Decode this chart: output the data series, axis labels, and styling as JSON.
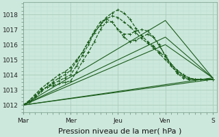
{
  "bg_color": "#cce8dc",
  "grid_major_color": "#aaccbb",
  "grid_minor_color": "#bbddd0",
  "line_color": "#1a5c1a",
  "xlabel": "Pression niveau de la mer( hPa )",
  "xlabel_fontsize": 8,
  "ylim": [
    1011.5,
    1018.8
  ],
  "yticks": [
    1012,
    1013,
    1014,
    1015,
    1016,
    1017,
    1018
  ],
  "xtick_labels": [
    "Mar",
    "Mer",
    "Jeu",
    "Ven",
    "S"
  ],
  "xtick_positions": [
    0,
    48,
    96,
    144,
    192
  ],
  "total_hours": 196,
  "series": [
    {
      "x": [
        0,
        192
      ],
      "y": [
        1012.0,
        1013.7
      ],
      "style": "solid",
      "marker": null,
      "linewidth": 0.8
    },
    {
      "x": [
        0,
        192
      ],
      "y": [
        1012.0,
        1013.8
      ],
      "style": "solid",
      "marker": null,
      "linewidth": 0.8
    },
    {
      "x": [
        0,
        144,
        192
      ],
      "y": [
        1012.0,
        1016.0,
        1013.8
      ],
      "style": "solid",
      "marker": null,
      "linewidth": 0.8
    },
    {
      "x": [
        0,
        144,
        192
      ],
      "y": [
        1012.0,
        1016.5,
        1013.8
      ],
      "style": "solid",
      "marker": null,
      "linewidth": 0.8
    },
    {
      "x": [
        0,
        144,
        192
      ],
      "y": [
        1012.0,
        1017.6,
        1013.8
      ],
      "style": "solid",
      "marker": null,
      "linewidth": 0.8
    },
    {
      "x": [
        0,
        6,
        12,
        18,
        24,
        30,
        36,
        42,
        48,
        54,
        60,
        66,
        72,
        78,
        84,
        90,
        96,
        102,
        108,
        114,
        120,
        126,
        132,
        138,
        144,
        150,
        156,
        162,
        168,
        174,
        180,
        186,
        192
      ],
      "y": [
        1012.0,
        1012.2,
        1012.5,
        1012.9,
        1013.2,
        1013.4,
        1013.6,
        1013.8,
        1014.0,
        1014.6,
        1015.3,
        1016.0,
        1016.8,
        1017.3,
        1017.8,
        1018.1,
        1018.3,
        1018.1,
        1017.7,
        1017.1,
        1016.6,
        1016.2,
        1015.9,
        1015.5,
        1015.2,
        1014.7,
        1014.3,
        1014.0,
        1013.8,
        1013.7,
        1013.7,
        1013.7,
        1013.7
      ],
      "style": "dashed",
      "marker": "+",
      "linewidth": 0.9
    },
    {
      "x": [
        0,
        6,
        12,
        18,
        24,
        30,
        36,
        42,
        48,
        54,
        60,
        66,
        72,
        78,
        84,
        90,
        96,
        102,
        108,
        114,
        120,
        126,
        132,
        138,
        144,
        150,
        156,
        162,
        168,
        174,
        180,
        186,
        192
      ],
      "y": [
        1012.0,
        1012.3,
        1012.7,
        1013.1,
        1013.4,
        1013.7,
        1014.0,
        1014.2,
        1014.5,
        1015.0,
        1015.5,
        1016.2,
        1016.8,
        1017.3,
        1017.7,
        1017.9,
        1017.8,
        1017.5,
        1017.2,
        1016.8,
        1016.4,
        1016.1,
        1015.8,
        1015.4,
        1015.0,
        1014.6,
        1014.2,
        1013.9,
        1013.7,
        1013.7,
        1013.7,
        1013.7,
        1013.7
      ],
      "style": "dashed",
      "marker": "+",
      "linewidth": 0.9
    },
    {
      "x": [
        0,
        6,
        12,
        18,
        24,
        30,
        36,
        42,
        48,
        54,
        60,
        66,
        72,
        78,
        84,
        90,
        96,
        102,
        108,
        114,
        120,
        126,
        132,
        138,
        144,
        150,
        156,
        162,
        168,
        174,
        180,
        186,
        192
      ],
      "y": [
        1012.0,
        1012.3,
        1012.6,
        1013.0,
        1013.2,
        1013.3,
        1013.4,
        1013.5,
        1013.6,
        1014.2,
        1014.9,
        1015.5,
        1016.2,
        1017.0,
        1017.5,
        1017.5,
        1017.0,
        1016.5,
        1016.2,
        1016.3,
        1016.5,
        1016.7,
        1016.5,
        1016.0,
        1015.2,
        1014.6,
        1014.1,
        1013.8,
        1013.7,
        1013.7,
        1013.7,
        1013.7,
        1013.7
      ],
      "style": "dashed",
      "marker": "+",
      "linewidth": 0.9
    },
    {
      "x": [
        0,
        6,
        12,
        18,
        24,
        30,
        36,
        42,
        48,
        54,
        60,
        66,
        72,
        78,
        84,
        90,
        96,
        102,
        108,
        114,
        120,
        126,
        132,
        138,
        144,
        150,
        156,
        162,
        168,
        174,
        180,
        186,
        192
      ],
      "y": [
        1012.0,
        1012.2,
        1012.5,
        1012.9,
        1013.2,
        1013.5,
        1013.8,
        1014.0,
        1014.3,
        1014.9,
        1015.5,
        1016.2,
        1016.9,
        1017.5,
        1017.7,
        1017.5,
        1017.0,
        1016.7,
        1016.7,
        1016.9,
        1017.0,
        1016.9,
        1016.5,
        1015.9,
        1015.3,
        1014.7,
        1014.3,
        1014.0,
        1013.8,
        1013.7,
        1013.7,
        1013.7,
        1013.7
      ],
      "style": "dashed",
      "marker": "+",
      "linewidth": 0.9
    }
  ]
}
